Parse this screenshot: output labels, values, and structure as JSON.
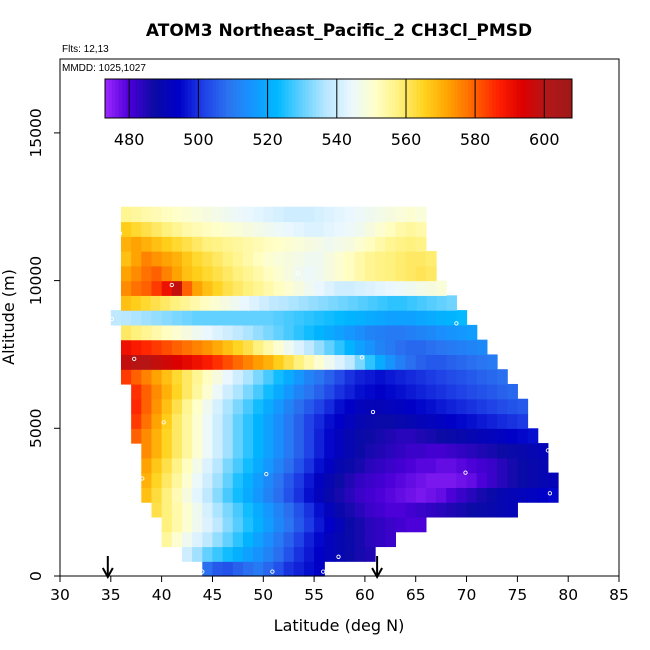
{
  "chart_data": {
    "type": "heatmap",
    "title": "ATOM3 Northeast_Pacific_2 CH3Cl_PMSD",
    "flights_note": "Flts: 12,13",
    "dates_note": "MMDD: 1025,1027",
    "xlabel": "Latitude (deg N)",
    "ylabel": "Altitude (m)",
    "xlim": [
      30,
      85
    ],
    "ylim": [
      0,
      17500
    ],
    "x_ticks": [
      "30",
      "35",
      "40",
      "45",
      "50",
      "55",
      "60",
      "65",
      "70",
      "75",
      "80",
      "85"
    ],
    "y_ticks": [
      "0",
      "5000",
      "10000",
      "15000"
    ],
    "colorbar": {
      "range": [
        473,
        608
      ],
      "ticks": [
        "480",
        "500",
        "520",
        "540",
        "560",
        "580",
        "600"
      ],
      "tick_values": [
        480,
        500,
        520,
        540,
        560,
        580,
        600
      ]
    },
    "bin_height_m": 500,
    "bin_width_deg": 1,
    "profile_rows": [
      {
        "alt": 250,
        "lat_min": 44,
        "lat_max": 56,
        "values": [
          508,
          505,
          504,
          506,
          508,
          510,
          507,
          504,
          500,
          498,
          496,
          494
        ]
      },
      {
        "alt": 750,
        "lat_min": 42,
        "lat_max": 61,
        "values": [
          540,
          535,
          530,
          527,
          524,
          521,
          518,
          515,
          512,
          508,
          504,
          500,
          497,
          494,
          492,
          490,
          488,
          486,
          485
        ]
      },
      {
        "alt": 1250,
        "lat_min": 40,
        "lat_max": 63,
        "values": [
          555,
          550,
          546,
          542,
          538,
          534,
          530,
          526,
          522,
          518,
          514,
          510,
          506,
          502,
          498,
          495,
          492,
          490,
          488,
          486,
          484,
          483,
          482
        ]
      },
      {
        "alt": 1750,
        "lat_min": 40,
        "lat_max": 66,
        "values": [
          558,
          554,
          550,
          546,
          542,
          538,
          533,
          529,
          525,
          521,
          517,
          513,
          509,
          505,
          501,
          497,
          494,
          491,
          488,
          486,
          484,
          483,
          482,
          481,
          480,
          480
        ]
      },
      {
        "alt": 2250,
        "lat_min": 39,
        "lat_max": 75,
        "values": [
          562,
          558,
          554,
          550,
          546,
          541,
          536,
          532,
          528,
          524,
          520,
          516,
          512,
          508,
          504,
          500,
          496,
          492,
          489,
          486,
          484,
          482,
          481,
          480,
          480,
          481,
          482,
          483,
          484,
          485,
          486,
          487,
          488,
          489,
          490,
          491
        ]
      },
      {
        "alt": 2750,
        "lat_min": 38,
        "lat_max": 79,
        "values": [
          568,
          563,
          558,
          553,
          548,
          543,
          538,
          533,
          528,
          524,
          520,
          516,
          512,
          508,
          504,
          500,
          496,
          492,
          489,
          486,
          484,
          482,
          481,
          480,
          479,
          478,
          477,
          476,
          477,
          478,
          480,
          482,
          484,
          486,
          488,
          490,
          491,
          492,
          493,
          494,
          495
        ]
      },
      {
        "alt": 3250,
        "lat_min": 38,
        "lat_max": 79,
        "values": [
          570,
          565,
          560,
          555,
          550,
          545,
          540,
          535,
          530,
          525,
          521,
          517,
          513,
          509,
          505,
          501,
          497,
          493,
          490,
          487,
          485,
          483,
          482,
          481,
          480,
          479,
          478,
          477,
          476,
          476,
          476,
          477,
          478,
          480,
          482,
          484,
          486,
          488,
          489,
          490,
          491
        ]
      },
      {
        "alt": 3750,
        "lat_min": 38,
        "lat_max": 78,
        "values": [
          572,
          567,
          562,
          557,
          552,
          547,
          542,
          537,
          532,
          528,
          524,
          520,
          516,
          512,
          508,
          504,
          500,
          496,
          493,
          490,
          488,
          486,
          484,
          483,
          482,
          481,
          480,
          479,
          479,
          478,
          478,
          479,
          480,
          481,
          482,
          484,
          486,
          488,
          489,
          490
        ]
      },
      {
        "alt": 4250,
        "lat_min": 38,
        "lat_max": 78,
        "values": [
          575,
          570,
          565,
          560,
          555,
          550,
          545,
          540,
          535,
          530,
          526,
          522,
          518,
          514,
          510,
          506,
          502,
          498,
          495,
          492,
          490,
          488,
          486,
          485,
          484,
          483,
          482,
          482,
          481,
          481,
          482,
          483,
          484,
          485,
          486,
          487,
          488,
          489,
          490,
          491
        ]
      },
      {
        "alt": 4750,
        "lat_min": 37,
        "lat_max": 77,
        "values": [
          580,
          575,
          570,
          565,
          560,
          555,
          550,
          545,
          540,
          535,
          530,
          526,
          522,
          518,
          514,
          510,
          506,
          502,
          498,
          495,
          492,
          490,
          488,
          487,
          486,
          485,
          484,
          484,
          485,
          486,
          487,
          488,
          489,
          490,
          491,
          492,
          493,
          494,
          495,
          496
        ]
      },
      {
        "alt": 5250,
        "lat_min": 37,
        "lat_max": 76,
        "values": [
          584,
          578,
          572,
          566,
          560,
          555,
          550,
          545,
          540,
          535,
          530,
          526,
          522,
          518,
          514,
          510,
          506,
          502,
          499,
          496,
          494,
          492,
          490,
          489,
          488,
          488,
          489,
          490,
          491,
          492,
          493,
          494,
          495,
          496,
          497,
          498,
          499,
          500,
          501
        ]
      },
      {
        "alt": 5750,
        "lat_min": 37,
        "lat_max": 76,
        "values": [
          586,
          580,
          574,
          568,
          562,
          556,
          551,
          546,
          541,
          536,
          532,
          528,
          524,
          520,
          516,
          512,
          508,
          505,
          502,
          499,
          496,
          494,
          492,
          491,
          491,
          492,
          493,
          494,
          495,
          496,
          497,
          498,
          499,
          500,
          501,
          502,
          503,
          504,
          505
        ]
      },
      {
        "alt": 6250,
        "lat_min": 37,
        "lat_max": 75,
        "values": [
          585,
          580,
          575,
          570,
          565,
          560,
          555,
          550,
          545,
          540,
          536,
          532,
          528,
          524,
          520,
          516,
          512,
          509,
          506,
          503,
          500,
          498,
          496,
          495,
          494,
          495,
          496,
          497,
          498,
          499,
          500,
          501,
          502,
          503,
          504,
          505,
          506,
          507
        ]
      },
      {
        "alt": 6750,
        "lat_min": 36,
        "lat_max": 74,
        "values": [
          584,
          580,
          576,
          572,
          568,
          564,
          560,
          556,
          552,
          548,
          544,
          540,
          536,
          532,
          528,
          524,
          520,
          516,
          512,
          509,
          506,
          503,
          500,
          498,
          497,
          496,
          497,
          498,
          499,
          500,
          501,
          502,
          503,
          504,
          505,
          506,
          507,
          508
        ]
      },
      {
        "alt": 7250,
        "lat_min": 36,
        "lat_max": 73,
        "values": [
          598,
          600,
          600,
          598,
          596,
          594,
          592,
          590,
          588,
          585,
          582,
          579,
          576,
          573,
          570,
          566,
          562,
          558,
          554,
          550,
          546,
          542,
          538,
          532,
          526,
          520,
          515,
          511,
          508,
          506,
          505,
          505,
          506,
          507,
          508,
          509,
          510
        ]
      },
      {
        "alt": 7750,
        "lat_min": 36,
        "lat_max": 72,
        "values": [
          590,
          588,
          586,
          584,
          582,
          580,
          578,
          576,
          574,
          571,
          568,
          565,
          562,
          558,
          554,
          550,
          546,
          542,
          538,
          534,
          530,
          526,
          522,
          518,
          515,
          512,
          510,
          508,
          507,
          507,
          508,
          509,
          510,
          511,
          512,
          513
        ]
      },
      {
        "alt": 8250,
        "lat_min": 36,
        "lat_max": 71,
        "values": [
          560,
          558,
          556,
          554,
          552,
          550,
          548,
          546,
          544,
          542,
          540,
          538,
          536,
          534,
          532,
          530,
          528,
          526,
          524,
          522,
          520,
          518,
          516,
          514,
          512,
          511,
          510,
          510,
          511,
          512,
          513,
          514,
          515,
          516,
          517
        ]
      },
      {
        "alt": 8750,
        "lat_min": 35,
        "lat_max": 70,
        "values": [
          538,
          537,
          536,
          535,
          534,
          533,
          532,
          531,
          530,
          530,
          530,
          530,
          530,
          530,
          530,
          530,
          529,
          528,
          527,
          526,
          525,
          524,
          523,
          522,
          521,
          520,
          519,
          518,
          518,
          518,
          519,
          520,
          521,
          522,
          523
        ]
      },
      {
        "alt": 9250,
        "lat_min": 36,
        "lat_max": 69,
        "values": [
          568,
          566,
          564,
          562,
          560,
          558,
          556,
          554,
          552,
          550,
          548,
          546,
          544,
          542,
          540,
          538,
          537,
          536,
          535,
          534,
          533,
          532,
          531,
          530,
          529,
          528,
          527,
          526,
          526,
          527,
          528,
          529,
          530,
          531
        ]
      },
      {
        "alt": 9750,
        "lat_min": 36,
        "lat_max": 68,
        "values": [
          575,
          578,
          580,
          584,
          590,
          598,
          580,
          572,
          568,
          565,
          562,
          560,
          558,
          556,
          554,
          552,
          550,
          548,
          546,
          544,
          542,
          540,
          540,
          541,
          542,
          543,
          544,
          545,
          546,
          547,
          548,
          549
        ]
      },
      {
        "alt": 10250,
        "lat_min": 36,
        "lat_max": 67,
        "values": [
          572,
          575,
          578,
          580,
          576,
          572,
          568,
          566,
          564,
          562,
          560,
          558,
          556,
          554,
          552,
          550,
          548,
          546,
          545,
          546,
          548,
          550,
          552,
          554,
          556,
          557,
          558,
          559,
          560,
          561,
          560
        ]
      },
      {
        "alt": 10750,
        "lat_min": 36,
        "lat_max": 67,
        "values": [
          568,
          572,
          576,
          574,
          572,
          570,
          567,
          564,
          562,
          560,
          558,
          556,
          554,
          552,
          550,
          549,
          548,
          547,
          546,
          546,
          548,
          550,
          552,
          554,
          556,
          557,
          558,
          559,
          560,
          560,
          559
        ]
      },
      {
        "alt": 11250,
        "lat_min": 36,
        "lat_max": 66,
        "values": [
          570,
          572,
          570,
          568,
          566,
          564,
          562,
          560,
          558,
          557,
          556,
          555,
          554,
          553,
          552,
          551,
          550,
          549,
          548,
          547,
          546,
          547,
          548,
          550,
          552,
          554,
          556,
          557,
          558,
          557
        ]
      },
      {
        "alt": 11750,
        "lat_min": 36,
        "lat_max": 66,
        "values": [
          566,
          564,
          562,
          560,
          558,
          556,
          554,
          553,
          552,
          551,
          550,
          549,
          548,
          547,
          546,
          545,
          544,
          543,
          542,
          542,
          543,
          544,
          545,
          546,
          548,
          550,
          552,
          554,
          555,
          554
        ]
      },
      {
        "alt": 12250,
        "lat_min": 36,
        "lat_max": 66,
        "values": [
          556,
          555,
          554,
          553,
          552,
          551,
          550,
          549,
          548,
          547,
          546,
          545,
          544,
          543,
          542,
          541,
          540,
          540,
          540,
          541,
          542,
          543,
          544,
          545,
          546,
          547,
          548,
          549,
          550,
          549
        ]
      }
    ],
    "flight_track_points": [
      {
        "lat": 35.1,
        "alt": 8700
      },
      {
        "lat": 35.9,
        "alt": 11600
      },
      {
        "lat": 37.3,
        "alt": 7350
      },
      {
        "lat": 38.1,
        "alt": 3300
      },
      {
        "lat": 40.2,
        "alt": 5200
      },
      {
        "lat": 41.0,
        "alt": 9850
      },
      {
        "lat": 44.0,
        "alt": 150
      },
      {
        "lat": 50.3,
        "alt": 3450
      },
      {
        "lat": 50.9,
        "alt": 150
      },
      {
        "lat": 53.4,
        "alt": 10250
      },
      {
        "lat": 55.9,
        "alt": 150
      },
      {
        "lat": 57.4,
        "alt": 650
      },
      {
        "lat": 59.7,
        "alt": 7400
      },
      {
        "lat": 60.8,
        "alt": 5550
      },
      {
        "lat": 69.0,
        "alt": 8550
      },
      {
        "lat": 69.9,
        "alt": 3500
      },
      {
        "lat": 78.0,
        "alt": 4250
      },
      {
        "lat": 78.2,
        "alt": 2800
      }
    ],
    "arrow_latitudes": [
      34.7,
      61.2
    ]
  },
  "colors": {
    "palette": [
      "#9d28ff",
      "#4b00d8",
      "#0b0ba4",
      "#0000c8",
      "#1f3fe6",
      "#2b73f0",
      "#1596ff",
      "#00b8ff",
      "#61d0ff",
      "#b9e7ff",
      "#eaf7ff",
      "#ffffc8",
      "#fff07a",
      "#ffd21e",
      "#ffa000",
      "#ff6400",
      "#ff2000",
      "#dc0000",
      "#b21818",
      "#a01818"
    ],
    "axis": "#000000"
  }
}
